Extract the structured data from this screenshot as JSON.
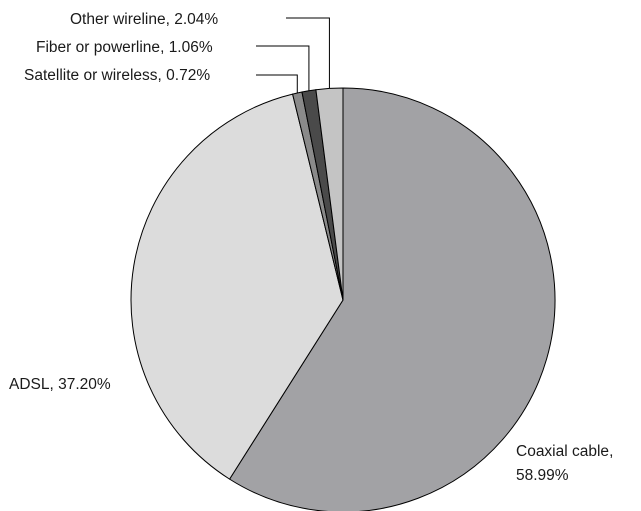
{
  "chart_data": {
    "type": "pie",
    "start_angle_deg": 0,
    "direction": "clockwise",
    "slices": [
      {
        "label": "Coaxial cable",
        "value": 58.99,
        "value_text": "58.99%",
        "color": "#a2a2a5"
      },
      {
        "label": "ADSL",
        "value": 37.2,
        "value_text": "37.20%",
        "color": "#dcdcdc"
      },
      {
        "label": "Satellite or wireless",
        "value": 0.72,
        "value_text": "0.72%",
        "color": "#8a8a8a"
      },
      {
        "label": "Fiber or powerline",
        "value": 1.06,
        "value_text": "1.06%",
        "color": "#4a4a4a"
      },
      {
        "label": "Other wireline",
        "value": 2.04,
        "value_text": "2.04%",
        "color": "#c4c4c4"
      }
    ]
  }
}
